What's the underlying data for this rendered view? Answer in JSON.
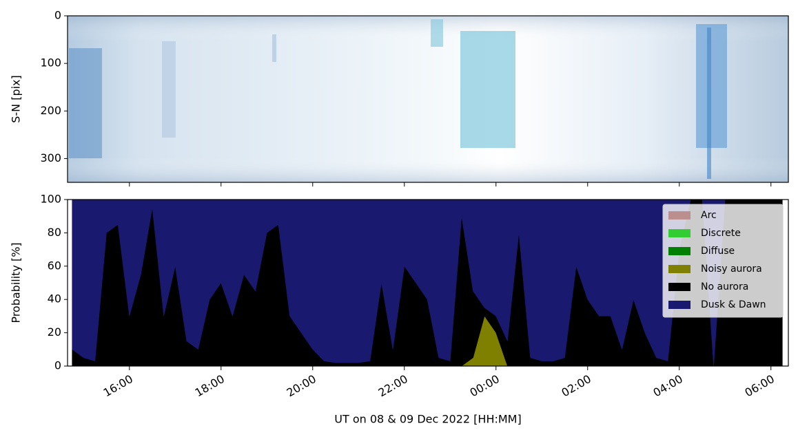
{
  "chart_data": [
    {
      "type": "image",
      "ylabel": "S-N [pix]",
      "ylim": [
        350,
        0
      ],
      "yticks": [
        0,
        100,
        200,
        300
      ],
      "xlim": [
        14.65,
        30.38
      ],
      "xticks": [
        16,
        18,
        20,
        22,
        24,
        26,
        28,
        30
      ]
    },
    {
      "type": "stacked-area",
      "xlabel": "UT on 08 & 09 Dec 2022 [HH:MM]",
      "ylabel": "Probability [%]",
      "xlim": [
        14.65,
        30.38
      ],
      "xticks": [
        {
          "value": 16,
          "label": "16:00"
        },
        {
          "value": 18,
          "label": "18:00"
        },
        {
          "value": 20,
          "label": "20:00"
        },
        {
          "value": 22,
          "label": "22:00"
        },
        {
          "value": 24,
          "label": "00:00"
        },
        {
          "value": 26,
          "label": "02:00"
        },
        {
          "value": 28,
          "label": "04:00"
        },
        {
          "value": 30,
          "label": "06:00"
        }
      ],
      "ylim": [
        0,
        100
      ],
      "yticks": [
        0,
        20,
        40,
        60,
        80,
        100
      ],
      "legend": "upper right",
      "x": [
        14.75,
        15,
        15.25,
        15.5,
        15.75,
        16,
        16.25,
        16.5,
        16.75,
        17,
        17.25,
        17.5,
        17.75,
        18,
        18.25,
        18.5,
        18.75,
        19,
        19.25,
        19.5,
        19.75,
        20,
        20.25,
        20.5,
        20.75,
        21,
        21.25,
        21.5,
        21.75,
        22,
        22.25,
        22.5,
        22.75,
        23,
        23.25,
        23.5,
        23.75,
        24,
        24.25,
        24.5,
        24.75,
        25,
        25.25,
        25.5,
        25.75,
        26,
        26.25,
        26.5,
        26.75,
        27,
        27.25,
        27.5,
        27.75,
        28,
        28.25,
        28.5,
        28.75,
        29,
        29.25,
        29.5,
        29.75,
        30,
        30.25
      ],
      "series": [
        {
          "name": "Arc",
          "color": "#bc8f8f",
          "values": [
            0,
            0,
            0,
            0,
            0,
            0,
            0,
            0,
            0,
            0,
            0,
            0,
            0,
            0,
            0,
            0,
            0,
            0,
            0,
            0,
            0,
            0,
            0,
            0,
            0,
            0,
            0,
            0,
            0,
            0,
            0,
            0,
            0,
            0,
            0,
            0,
            0,
            0,
            0,
            0,
            0,
            0,
            0,
            0,
            0,
            0,
            0,
            0,
            0,
            0,
            0,
            0,
            0,
            0,
            0,
            0,
            0,
            0,
            0,
            0,
            0,
            0,
            0
          ]
        },
        {
          "name": "Discrete",
          "color": "#32cd32",
          "values": [
            0,
            0,
            0,
            0,
            0,
            0,
            0,
            0,
            0,
            0,
            0,
            0,
            0,
            0,
            0,
            0,
            0,
            0,
            0,
            0,
            0,
            0,
            0,
            0,
            0,
            0,
            0,
            0,
            0,
            0,
            0,
            0,
            0,
            0,
            0,
            0,
            0,
            0,
            0,
            0,
            0,
            0,
            0,
            0,
            0,
            0,
            0,
            0,
            0,
            0,
            0,
            0,
            0,
            0,
            0,
            0,
            0,
            0,
            0,
            0,
            0,
            0,
            0
          ]
        },
        {
          "name": "Diffuse",
          "color": "#008000",
          "values": [
            0,
            0,
            0,
            0,
            0,
            0,
            0,
            0,
            0,
            0,
            0,
            0,
            0,
            0,
            0,
            0,
            0,
            0,
            0,
            0,
            0,
            0,
            0,
            0,
            0,
            0,
            0,
            0,
            0,
            0,
            0,
            0,
            0,
            0,
            0,
            0,
            0,
            0,
            0,
            0,
            0,
            0,
            0,
            0,
            0,
            0,
            0,
            0,
            0,
            0,
            0,
            0,
            0,
            0,
            0,
            0,
            0,
            0,
            0,
            0,
            0,
            0,
            0
          ]
        },
        {
          "name": "Noisy aurora",
          "color": "#808000",
          "values": [
            0,
            0,
            0,
            0,
            0,
            0,
            0,
            0,
            0,
            0,
            0,
            0,
            0,
            0,
            0,
            0,
            0,
            0,
            0,
            0,
            0,
            0,
            0,
            0,
            0,
            0,
            0,
            0,
            0,
            0,
            0,
            0,
            0,
            0,
            0,
            5,
            30,
            20,
            0,
            0,
            0,
            0,
            0,
            0,
            0,
            0,
            0,
            0,
            0,
            0,
            0,
            0,
            0,
            0,
            0,
            0,
            0,
            0,
            0,
            0,
            0,
            0,
            0
          ]
        },
        {
          "name": "No aurora",
          "color": "#000000",
          "values": [
            10,
            5,
            3,
            80,
            85,
            30,
            55,
            95,
            30,
            60,
            15,
            10,
            40,
            50,
            30,
            55,
            45,
            80,
            85,
            30,
            20,
            10,
            3,
            2,
            2,
            2,
            3,
            50,
            10,
            60,
            50,
            40,
            5,
            3,
            90,
            40,
            5,
            10,
            15,
            80,
            5,
            3,
            3,
            5,
            60,
            40,
            30,
            30,
            10,
            40,
            20,
            5,
            3,
            70,
            100,
            100,
            0,
            100,
            100,
            100,
            100,
            100,
            100
          ]
        },
        {
          "name": "Dusk & Dawn",
          "color": "#191970",
          "values": [
            90,
            95,
            97,
            20,
            15,
            70,
            45,
            5,
            70,
            40,
            85,
            90,
            60,
            50,
            70,
            45,
            55,
            20,
            15,
            70,
            80,
            90,
            97,
            98,
            98,
            98,
            97,
            50,
            90,
            40,
            50,
            60,
            95,
            97,
            10,
            55,
            65,
            70,
            85,
            20,
            95,
            97,
            97,
            95,
            40,
            60,
            70,
            70,
            90,
            60,
            80,
            95,
            97,
            30,
            0,
            0,
            100,
            0,
            0,
            0,
            0,
            0,
            0
          ]
        }
      ]
    }
  ]
}
